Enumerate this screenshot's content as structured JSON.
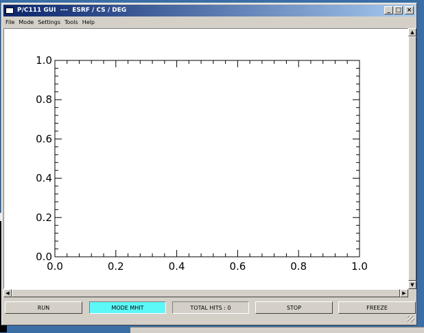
{
  "window": {
    "title": "P/C111 GUI  ---  ESRF / CS / DEG",
    "controls": {
      "minimize": "_",
      "maximize": "□",
      "close": "×"
    }
  },
  "menu": [
    "File",
    "Mode",
    "Settings",
    "Tools",
    "Help"
  ],
  "chart_data": {
    "type": "scatter",
    "title": "",
    "xlabel": "",
    "ylabel": "",
    "xlim": [
      0.0,
      1.0
    ],
    "ylim": [
      0.0,
      1.0
    ],
    "x_ticks": [
      "0.0",
      "0.2",
      "0.4",
      "0.6",
      "0.8",
      "1.0"
    ],
    "y_ticks": [
      "0.0",
      "0.2",
      "0.4",
      "0.6",
      "0.8",
      "1.0"
    ],
    "grid": false,
    "series": []
  },
  "buttons": {
    "run": "RUN",
    "mode": "MODE MHIT",
    "total_hits": "TOTAL HITS : 0",
    "stop": "STOP",
    "freeze": "FREEZE"
  },
  "colors": {
    "mode_button": "#5cf8f8",
    "titlebar": "#0a246a"
  }
}
